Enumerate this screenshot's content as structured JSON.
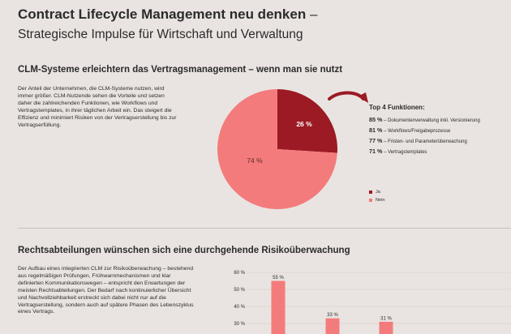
{
  "header": {
    "title": "Contract Lifecycle Management neu denken",
    "title_dash": "–",
    "subtitle": "Strategische Impulse für Wirtschaft und Verwaltung"
  },
  "section1": {
    "heading": "CLM-Systeme erleichtern das Vertragsmanagement – wenn man sie nutzt",
    "paragraph": "Der Anteil der Unternehmen, die CLM-Systeme nutzen, wird immer größer. CLM-Nutzende sehen die Vorteile und setzen daher die zahlreichenden Funktionen, wie Workflows und Vertragstemplates, in ihrer täglichen Arbeit ein. Das steigert die Effizienz und minimiert Risiken von der Vertragserstellung bis zur Vertragserfüllung.",
    "features_title": "Top 4 Funktionen:",
    "features": [
      {
        "pct": "85 %",
        "label": "– Dokumentenverwaltung inkl. Versionierung"
      },
      {
        "pct": "81 %",
        "label": "– Workflows/Freigabeprozesse"
      },
      {
        "pct": "77 %",
        "label": "– Fristen- und Parameterüberwachung"
      },
      {
        "pct": "71 %",
        "label": "– Vertragstemplates"
      }
    ]
  },
  "section2": {
    "heading": "Rechtsabteilungen wünschen sich eine durchgehende Risikoüberwachung",
    "paragraph": "Der Aufbau eines integrierten CLM zur Risikoüberwachung – bestehend aus regelmäßigen Prüfungen, Frühwarnmechanismen und klar definierten Kommunikationswegen – entspricht den Erwartungen der meisten Rechtsabteilungen. Der Bedarf nach kontinuierlicher Übersicht und Nachvollziehbarkeit erstreckt sich dabei nicht nur auf die Vertragserstellung, sondern auch auf spätere Phasen des Lebenszyklus eines Vertrags."
  },
  "colors": {
    "ja": "#9b1a24",
    "nein": "#f47b7c",
    "bar": "#f47b7c",
    "background": "#e9e4e1"
  },
  "chart_data": [
    {
      "type": "pie",
      "labels": [
        "Ja",
        "Nein"
      ],
      "values": [
        26,
        74
      ],
      "value_labels": [
        "26 %",
        "74 %"
      ],
      "colors": [
        "#9b1a24",
        "#f47b7c"
      ],
      "legend": "bottom-right"
    },
    {
      "type": "bar",
      "values": [
        55,
        33,
        31
      ],
      "value_labels": [
        "55 %",
        "33 %",
        "31 %"
      ],
      "yticks": [
        "30 %",
        "40 %",
        "50 %",
        "60 %"
      ],
      "ylim": [
        30,
        60
      ],
      "grid": true
    }
  ]
}
